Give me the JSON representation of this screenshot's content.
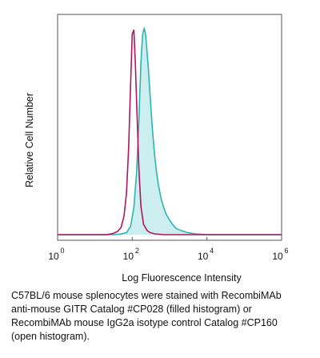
{
  "chart_data": {
    "type": "area",
    "xlabel": "Log Fluorescence Intensity",
    "ylabel": "Relative Cell Number",
    "x_scale": "log",
    "xlim": [
      1,
      1000000
    ],
    "ylim": [
      0,
      1
    ],
    "ticks": [
      {
        "value": 1,
        "base": "10",
        "exp": "0"
      },
      {
        "value": 100,
        "base": "10",
        "exp": "2"
      },
      {
        "value": 10000,
        "base": "10",
        "exp": "4"
      },
      {
        "value": 1000000,
        "base": "10",
        "exp": "6"
      }
    ],
    "grid": false,
    "series": [
      {
        "filled": true,
        "color": "#2ab5b5",
        "fill_color": "#cdeeee",
        "x": [
          1,
          10,
          30,
          50,
          70,
          90,
          110,
          130,
          150,
          170,
          190,
          210,
          230,
          250,
          270,
          290,
          320,
          350,
          400,
          450,
          500,
          600,
          700,
          800,
          1000,
          1200,
          1500,
          2000,
          3000,
          5000,
          10000,
          100000,
          1000000
        ],
        "y": [
          0,
          0,
          0,
          0.003,
          0.01,
          0.04,
          0.13,
          0.3,
          0.55,
          0.83,
          0.97,
          1.0,
          0.96,
          0.88,
          0.8,
          0.72,
          0.6,
          0.5,
          0.38,
          0.3,
          0.24,
          0.17,
          0.13,
          0.1,
          0.07,
          0.05,
          0.03,
          0.02,
          0.01,
          0.004,
          0,
          0,
          0
        ]
      },
      {
        "filled": false,
        "color": "#b0155e",
        "x": [
          1,
          10,
          20,
          30,
          40,
          50,
          60,
          70,
          80,
          90,
          100,
          110,
          120,
          130,
          150,
          170,
          200,
          250,
          300,
          400,
          700,
          1000,
          100000,
          1000000
        ],
        "y": [
          0,
          0,
          0,
          0.005,
          0.015,
          0.035,
          0.09,
          0.2,
          0.42,
          0.72,
          0.97,
          0.99,
          0.85,
          0.65,
          0.32,
          0.14,
          0.05,
          0.02,
          0.01,
          0.004,
          0,
          0,
          0,
          0
        ]
      }
    ]
  },
  "caption_lines": [
    "C57BL/6 mouse splenocytes were stained with RecombiMAb",
    "anti-mouse GITR Catalog #CP028 (filled histogram) or",
    "RecombiMAb mouse IgG2a isotype control Catalog #CP160",
    "(open histogram)."
  ]
}
